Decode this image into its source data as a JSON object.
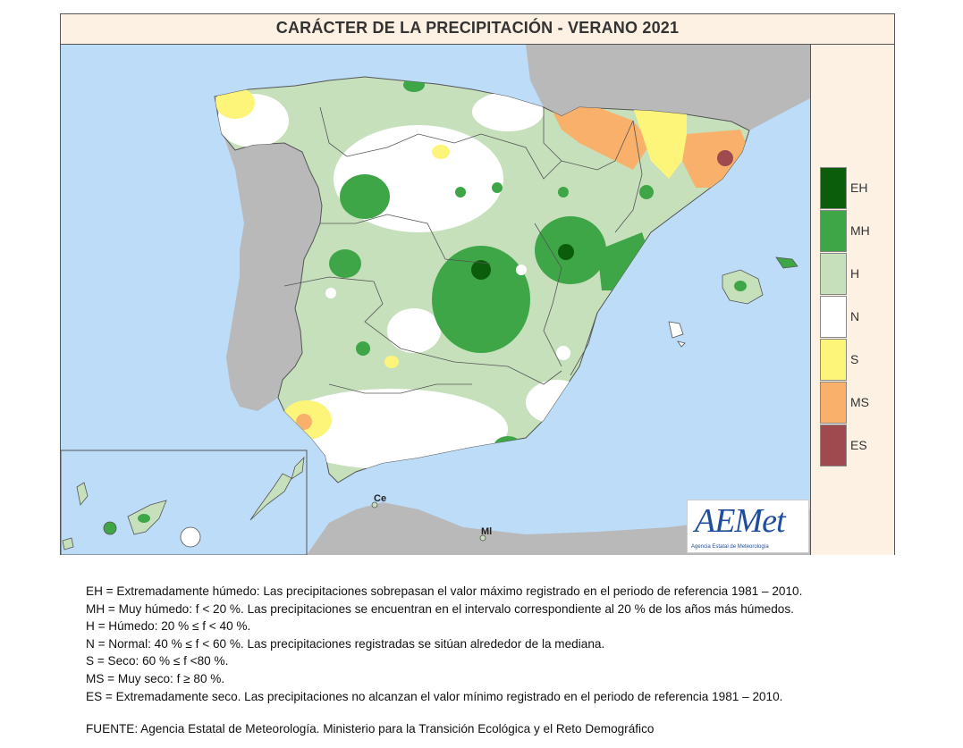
{
  "title": "CARÁCTER DE LA PRECIPITACIÓN - VERANO  2021",
  "legend": [
    {
      "code": "EH",
      "color": "#0b5d0b"
    },
    {
      "code": "MH",
      "color": "#3ea647"
    },
    {
      "code": "H",
      "color": "#c6e0bc"
    },
    {
      "code": "N",
      "color": "#ffffff"
    },
    {
      "code": "S",
      "color": "#fdf57a"
    },
    {
      "code": "MS",
      "color": "#f8b06b"
    },
    {
      "code": "ES",
      "color": "#9e4a4f"
    }
  ],
  "places": {
    "ceuta": "Ce",
    "melilla": "Ml"
  },
  "logo": {
    "brand": "AEMet",
    "subtitle": "Agencia Estatal de Meteorología"
  },
  "notes": [
    "EH = Extremadamente húmedo: Las precipitaciones sobrepasan el valor máximo registrado en el periodo de  referencia 1981 – 2010.",
    "MH = Muy húmedo: f < 20 %. Las precipitaciones se encuentran en el intervalo correspondiente al 20 % de los  años más húmedos.",
    "H = Húmedo: 20 % ≤ f < 40 %.",
    "N = Normal: 40 % ≤ f < 60 %. Las precipitaciones registradas se sitúan alrededor de la mediana.",
    "S = Seco: 60 % ≤ f <80 %.",
    "MS = Muy seco: f ≥ 80 %.",
    "ES = Extremadamente seco. Las precipitaciones no alcanzan el valor mínimo registrado en el periodo de  referencia 1981 – 2010."
  ],
  "source": "FUENTE: Agencia Estatal de Meteorología. Ministerio para la Transición Ecológica y el Reto Demográfico"
}
